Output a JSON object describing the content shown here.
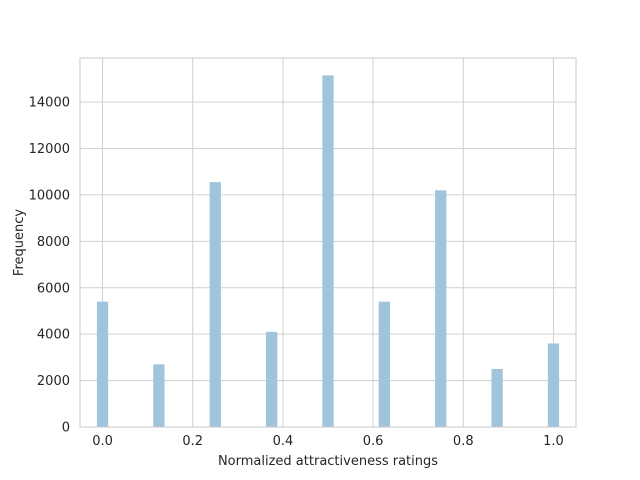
{
  "chart_data": {
    "type": "bar",
    "title": "",
    "xlabel": "Normalized attractiveness ratings",
    "ylabel": "Frequency",
    "xlim": [
      -0.05,
      1.05
    ],
    "ylim": [
      0,
      15900
    ],
    "x_ticks": [
      0.0,
      0.2,
      0.4,
      0.6,
      0.8,
      1.0
    ],
    "x_tick_labels": [
      "0.0",
      "0.2",
      "0.4",
      "0.6",
      "0.8",
      "1.0"
    ],
    "y_ticks": [
      0,
      2000,
      4000,
      6000,
      8000,
      10000,
      12000,
      14000
    ],
    "y_tick_labels": [
      "0",
      "2000",
      "4000",
      "6000",
      "8000",
      "10000",
      "12000",
      "14000"
    ],
    "bin_width": 0.025,
    "bins": [
      {
        "x": 0.0,
        "value": 5400
      },
      {
        "x": 0.125,
        "value": 2700
      },
      {
        "x": 0.25,
        "value": 10550
      },
      {
        "x": 0.375,
        "value": 4100
      },
      {
        "x": 0.5,
        "value": 15150
      },
      {
        "x": 0.625,
        "value": 5400
      },
      {
        "x": 0.75,
        "value": 10200
      },
      {
        "x": 0.875,
        "value": 2500
      },
      {
        "x": 1.0,
        "value": 3600
      }
    ],
    "grid": true,
    "bar_color": "#a1c4dd",
    "grid_color": "#d0d0d0",
    "spine_color": "#c8c8c8"
  }
}
